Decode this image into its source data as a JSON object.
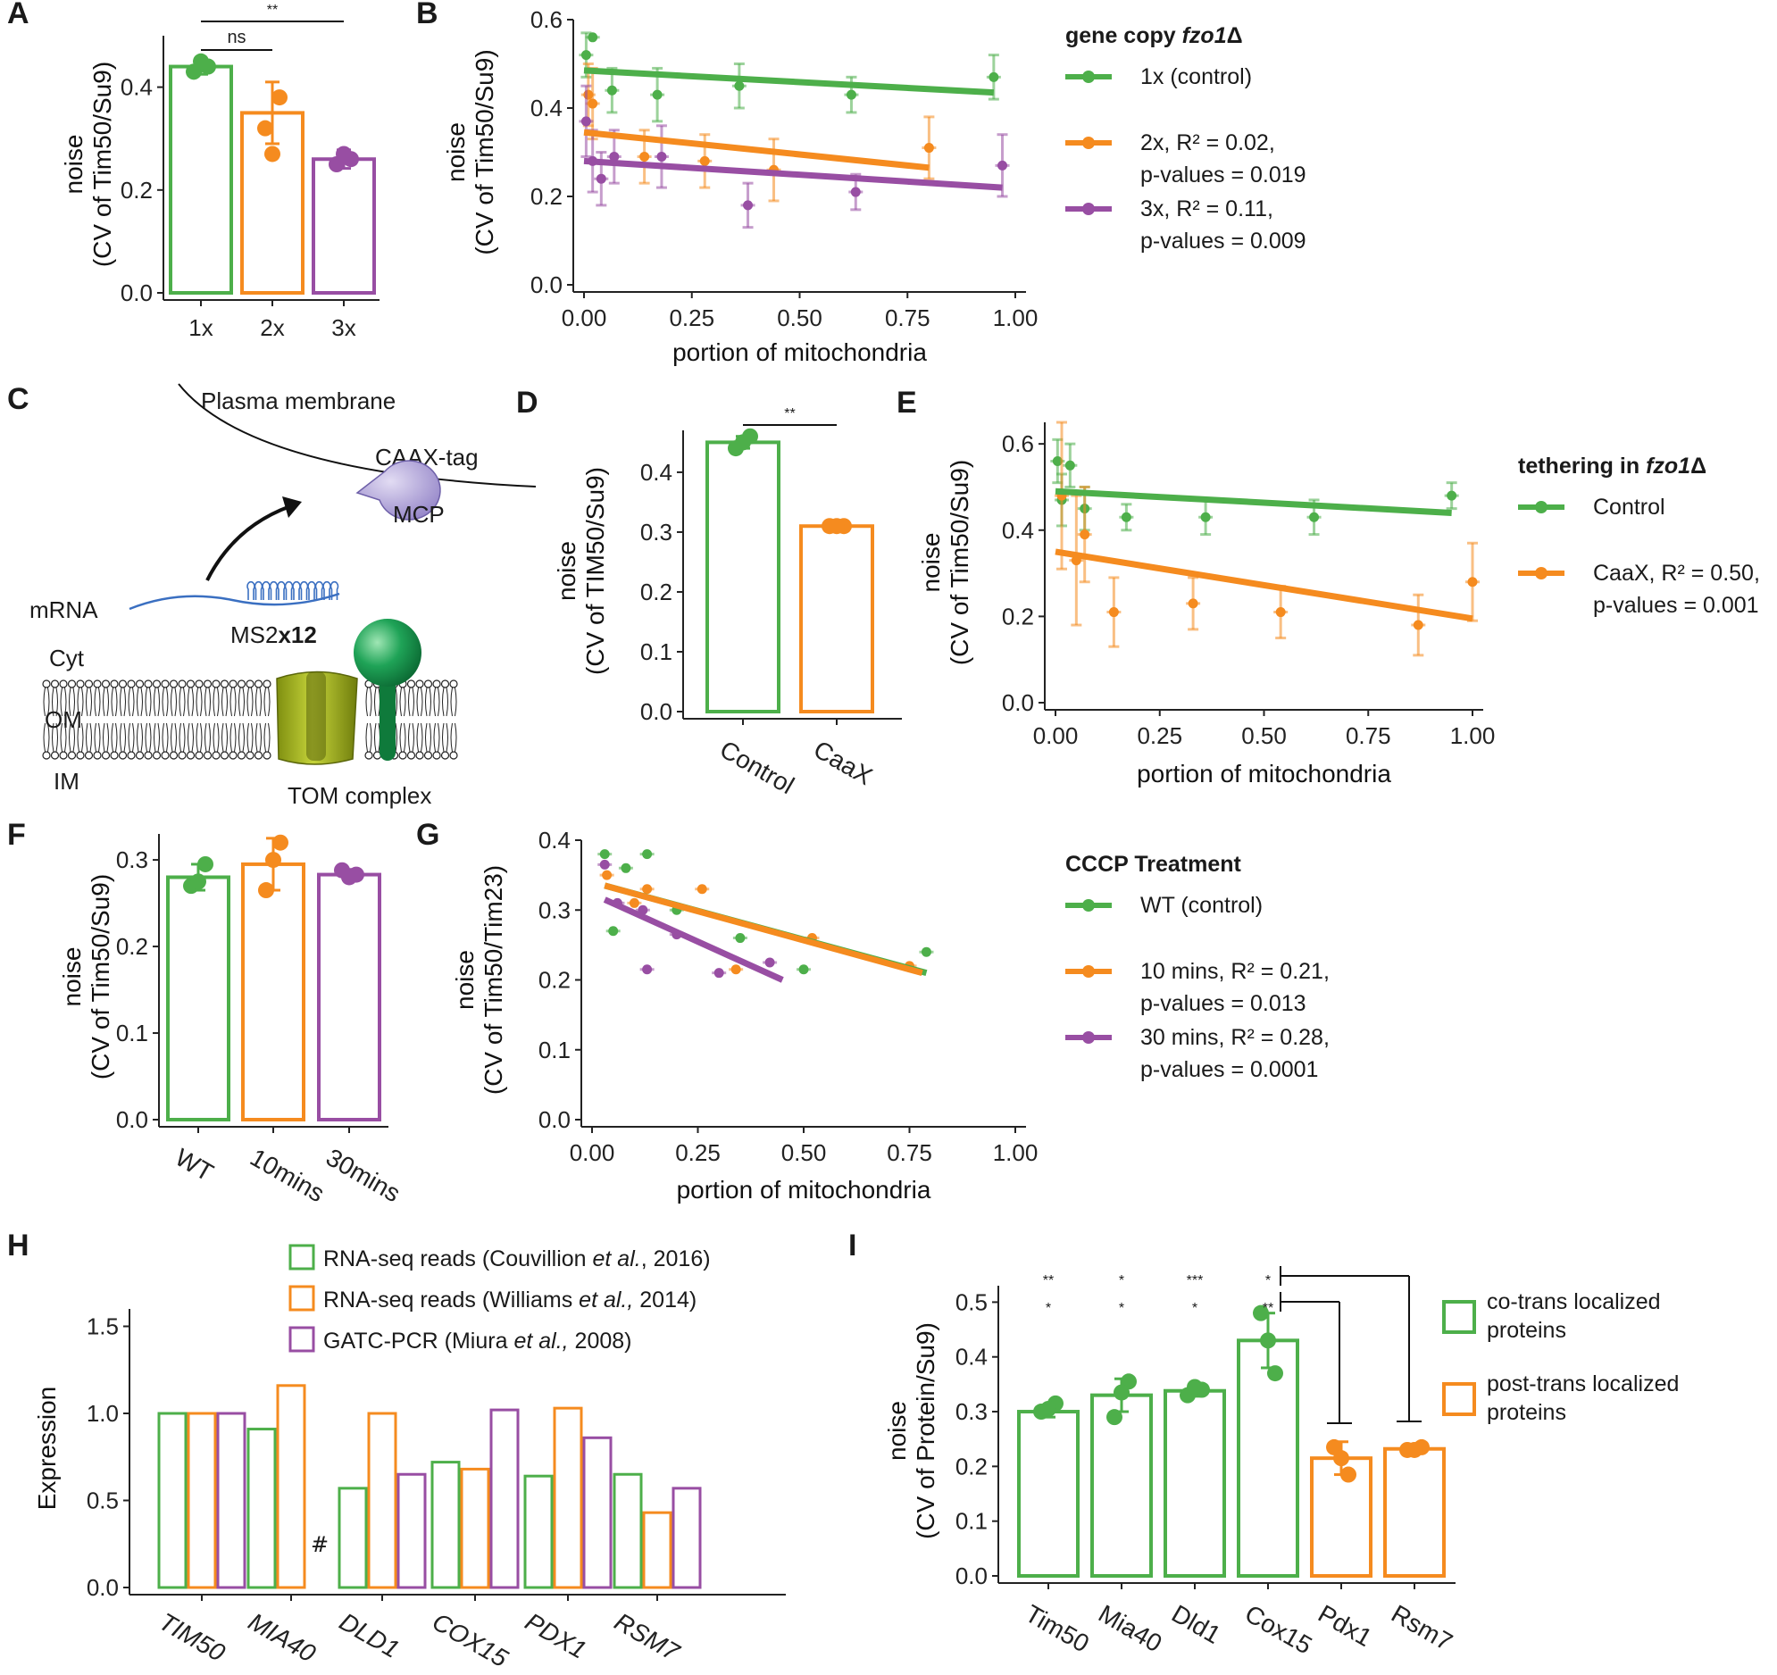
{
  "colors": {
    "green": "#4daf4a",
    "orange": "#f58b1f",
    "purple": "#984ea3",
    "axis": "#222222"
  },
  "panels": {
    "A": {
      "letter": "A",
      "type": "bar",
      "ylabel": [
        "noise",
        "(CV of Tim50/Su9)"
      ],
      "categories": [
        "1x",
        "2x",
        "3x"
      ],
      "values": [
        0.44,
        0.35,
        0.26
      ],
      "errors": [
        0.015,
        0.06,
        0.018
      ],
      "points": [
        [
          0.43,
          0.44,
          0.45
        ],
        [
          0.32,
          0.38,
          0.27
        ],
        [
          0.25,
          0.26,
          0.27
        ]
      ],
      "ylim": [
        0,
        0.5
      ],
      "yticks": [
        0.0,
        0.2,
        0.4
      ],
      "bar_colors": [
        "green",
        "orange",
        "purple"
      ],
      "significance": [
        {
          "from": 0,
          "to": 1,
          "label": "ns"
        },
        {
          "from": 0,
          "to": 2,
          "label": "**"
        }
      ]
    },
    "B": {
      "letter": "B",
      "type": "scatter",
      "xlabel": "portion of mitochondria",
      "ylabel": [
        "noise",
        "(CV of Tim50/Su9)"
      ],
      "xlim": [
        0,
        1
      ],
      "ylim": [
        0,
        0.6
      ],
      "xticks": [
        0.0,
        0.25,
        0.5,
        0.75,
        1.0
      ],
      "yticks": [
        0.0,
        0.2,
        0.4,
        0.6
      ],
      "legend_title": "gene copy ",
      "legend_title_italic": "fzo1",
      "legend_title_suffix": "Δ",
      "series": [
        {
          "name": "1x (control)",
          "lines": [
            "1x (control)"
          ],
          "color": "green",
          "points": [
            [
              0.005,
              0.52,
              0.05
            ],
            [
              0.02,
              0.56,
              0.0
            ],
            [
              0.065,
              0.44,
              0.05
            ],
            [
              0.17,
              0.43,
              0.06
            ],
            [
              0.36,
              0.45,
              0.05
            ],
            [
              0.62,
              0.43,
              0.04
            ],
            [
              0.95,
              0.47,
              0.05
            ]
          ],
          "fit": [
            [
              0.0,
              0.485
            ],
            [
              0.95,
              0.435
            ]
          ]
        },
        {
          "name": "2x",
          "lines": [
            "2x, R² = 0.02,",
            "p-values = 0.019"
          ],
          "color": "orange",
          "points": [
            [
              0.01,
              0.43,
              0.07
            ],
            [
              0.02,
              0.41,
              0.08
            ],
            [
              0.14,
              0.29,
              0.06
            ],
            [
              0.28,
              0.28,
              0.06
            ],
            [
              0.44,
              0.26,
              0.07
            ],
            [
              0.8,
              0.31,
              0.07
            ]
          ],
          "fit": [
            [
              0.0,
              0.345
            ],
            [
              0.8,
              0.265
            ]
          ]
        },
        {
          "name": "3x",
          "lines": [
            "3x, R² = 0.11,",
            "p-values = 0.009"
          ],
          "color": "purple",
          "points": [
            [
              0.005,
              0.37,
              0.08
            ],
            [
              0.02,
              0.28,
              0.07
            ],
            [
              0.04,
              0.24,
              0.06
            ],
            [
              0.07,
              0.29,
              0.06
            ],
            [
              0.18,
              0.29,
              0.07
            ],
            [
              0.38,
              0.18,
              0.05
            ],
            [
              0.63,
              0.21,
              0.04
            ],
            [
              0.97,
              0.27,
              0.07
            ]
          ],
          "fit": [
            [
              0.0,
              0.28
            ],
            [
              0.97,
              0.22
            ]
          ]
        }
      ]
    },
    "C": {
      "letter": "C",
      "labels": {
        "plasma": "Plasma membrane",
        "caax": "CAAX-tag",
        "mcp": "MCP",
        "mrna": "mRNA",
        "ms2": "MS2",
        "ms2_bold": "x12",
        "cyt": "Cyt",
        "om": "OM",
        "im": "IM",
        "tom": "TOM complex"
      }
    },
    "D": {
      "letter": "D",
      "type": "bar",
      "ylabel": [
        "noise",
        "(CV of TIM50/Su9)"
      ],
      "categories": [
        "Control",
        "CaaX"
      ],
      "values": [
        0.45,
        0.31
      ],
      "errors": [
        0.01,
        0.003
      ],
      "points": [
        [
          0.44,
          0.46,
          0.45
        ],
        [
          0.31,
          0.31,
          0.31
        ]
      ],
      "ylim": [
        0,
        0.47
      ],
      "yticks": [
        0.0,
        0.1,
        0.2,
        0.3,
        0.4
      ],
      "bar_colors": [
        "green",
        "orange"
      ],
      "significance": [
        {
          "from": 0,
          "to": 1,
          "label": "**"
        }
      ]
    },
    "E": {
      "letter": "E",
      "type": "scatter",
      "xlabel": "portion of mitochondria",
      "ylabel": [
        "noise",
        "(CV of Tim50/Su9)"
      ],
      "xlim": [
        0,
        1
      ],
      "ylim": [
        0,
        0.65
      ],
      "xticks": [
        0.0,
        0.25,
        0.5,
        0.75,
        1.0
      ],
      "yticks": [
        0.0,
        0.2,
        0.4,
        0.6
      ],
      "legend_title": "tethering in ",
      "legend_title_italic": "fzo1",
      "legend_title_suffix": "Δ",
      "series": [
        {
          "name": "Control",
          "lines": [
            "Control"
          ],
          "color": "green",
          "points": [
            [
              0.005,
              0.56,
              0.05
            ],
            [
              0.015,
              0.47,
              0.06
            ],
            [
              0.035,
              0.55,
              0.05
            ],
            [
              0.07,
              0.45,
              0.05
            ],
            [
              0.17,
              0.43,
              0.03
            ],
            [
              0.36,
              0.43,
              0.04
            ],
            [
              0.62,
              0.43,
              0.04
            ],
            [
              0.95,
              0.48,
              0.03
            ]
          ],
          "fit": [
            [
              0.0,
              0.49
            ],
            [
              0.95,
              0.44
            ]
          ]
        },
        {
          "name": "CaaX",
          "lines": [
            "CaaX, R² = 0.50,",
            "p-values = 0.001"
          ],
          "color": "orange",
          "points": [
            [
              0.015,
              0.48,
              0.17
            ],
            [
              0.05,
              0.33,
              0.15
            ],
            [
              0.07,
              0.39,
              0.11
            ],
            [
              0.14,
              0.21,
              0.08
            ],
            [
              0.33,
              0.23,
              0.06
            ],
            [
              0.54,
              0.21,
              0.06
            ],
            [
              0.87,
              0.18,
              0.07
            ],
            [
              1.0,
              0.28,
              0.09
            ]
          ],
          "fit": [
            [
              0.0,
              0.35
            ],
            [
              1.0,
              0.195
            ]
          ]
        }
      ]
    },
    "F": {
      "letter": "F",
      "type": "bar",
      "ylabel": [
        "noise",
        "(CV of Tim50/Su9)"
      ],
      "categories": [
        "WT",
        "10mins",
        "30mins"
      ],
      "values": [
        0.28,
        0.295,
        0.283
      ],
      "errors": [
        0.015,
        0.03,
        0.006
      ],
      "points": [
        [
          0.27,
          0.295,
          0.275
        ],
        [
          0.265,
          0.32,
          0.3
        ],
        [
          0.288,
          0.283,
          0.28
        ]
      ],
      "ylim": [
        0,
        0.33
      ],
      "yticks": [
        0.0,
        0.1,
        0.2,
        0.3
      ],
      "bar_colors": [
        "green",
        "orange",
        "purple"
      ],
      "significance": []
    },
    "G": {
      "letter": "G",
      "type": "scatter",
      "xlabel": "portion of mitochondria",
      "ylabel": [
        "noise",
        "(CV of Tim50/Tim23)"
      ],
      "xlim": [
        0,
        1
      ],
      "ylim": [
        0,
        0.4
      ],
      "xticks": [
        0.0,
        0.25,
        0.5,
        0.75,
        1.0
      ],
      "yticks": [
        0.0,
        0.1,
        0.2,
        0.3,
        0.4
      ],
      "legend_title": "CCCP Treatment",
      "legend_title_italic": "",
      "legend_title_suffix": "",
      "series": [
        {
          "name": "WT (control)",
          "lines": [
            "WT (control)"
          ],
          "color": "green",
          "points": [
            [
              0.03,
              0.38,
              0.0
            ],
            [
              0.05,
              0.27,
              0.0
            ],
            [
              0.08,
              0.36,
              0.0
            ],
            [
              0.13,
              0.38,
              0.0
            ],
            [
              0.2,
              0.3,
              0.0
            ],
            [
              0.35,
              0.26,
              0.0
            ],
            [
              0.5,
              0.215,
              0.0
            ],
            [
              0.79,
              0.24,
              0.0
            ]
          ],
          "fit": [
            [
              0.03,
              0.335
            ],
            [
              0.79,
              0.21
            ]
          ]
        },
        {
          "name": "10 mins",
          "lines": [
            "10 mins, R² = 0.21,",
            "p-values = 0.013"
          ],
          "color": "orange",
          "points": [
            [
              0.035,
              0.35,
              0.0
            ],
            [
              0.1,
              0.31,
              0.0
            ],
            [
              0.13,
              0.33,
              0.0
            ],
            [
              0.26,
              0.33,
              0.0
            ],
            [
              0.34,
              0.215,
              0.0
            ],
            [
              0.52,
              0.26,
              0.0
            ],
            [
              0.75,
              0.22,
              0.0
            ]
          ],
          "fit": [
            [
              0.03,
              0.335
            ],
            [
              0.78,
              0.21
            ]
          ]
        },
        {
          "name": "30 mins",
          "lines": [
            "30 mins, R² = 0.28,",
            "p-values = 0.0001"
          ],
          "color": "purple",
          "points": [
            [
              0.03,
              0.365,
              0.0
            ],
            [
              0.06,
              0.31,
              0.0
            ],
            [
              0.12,
              0.3,
              0.0
            ],
            [
              0.13,
              0.215,
              0.0
            ],
            [
              0.2,
              0.265,
              0.0
            ],
            [
              0.3,
              0.21,
              0.0
            ],
            [
              0.42,
              0.225,
              0.0
            ]
          ],
          "fit": [
            [
              0.03,
              0.315
            ],
            [
              0.45,
              0.2
            ]
          ]
        }
      ]
    },
    "H": {
      "letter": "H",
      "type": "grouped-bar",
      "ylabel": "Expression",
      "categories": [
        "TIM50",
        "MIA40",
        "DLD1",
        "COX15",
        "PDX1",
        "RSM7"
      ],
      "ylim": [
        0,
        1.6
      ],
      "yticks": [
        0.0,
        0.5,
        1.0,
        1.5
      ],
      "series": [
        {
          "name": "Couvillion",
          "color": "green",
          "legend": [
            "RNA-seq reads (Couvillion ",
            "et al.",
            ", 2016)"
          ],
          "values": [
            1.0,
            0.91,
            0.57,
            0.72,
            0.64,
            0.65
          ]
        },
        {
          "name": "Williams",
          "color": "orange",
          "legend": [
            "RNA-seq reads (Williams ",
            "et al.,",
            " 2014)"
          ],
          "values": [
            1.0,
            1.16,
            1.0,
            0.68,
            1.03,
            0.43
          ]
        },
        {
          "name": "Miura",
          "color": "purple",
          "legend": [
            "GATC-PCR (Miura ",
            "et al.,",
            " 2008)"
          ],
          "values": [
            1.0,
            null,
            0.65,
            1.02,
            0.86,
            0.57
          ]
        }
      ],
      "missing_marker": "#"
    },
    "I": {
      "letter": "I",
      "type": "bar",
      "ylabel": [
        "noise",
        "(CV of Protein/Su9)"
      ],
      "categories": [
        "Tim50",
        "Mia40",
        "Dld1",
        "Cox15",
        "Pdx1",
        "Rsm7"
      ],
      "values": [
        0.3,
        0.33,
        0.338,
        0.43,
        0.215,
        0.232
      ],
      "errors": [
        0.01,
        0.03,
        0.01,
        0.05,
        0.03,
        0.005
      ],
      "points": [
        [
          0.3,
          0.315,
          0.305
        ],
        [
          0.29,
          0.355,
          0.335
        ],
        [
          0.33,
          0.34,
          0.345
        ],
        [
          0.48,
          0.37,
          0.43
        ],
        [
          0.235,
          0.185,
          0.215
        ],
        [
          0.23,
          0.235,
          0.23
        ]
      ],
      "ylim": [
        0,
        0.53
      ],
      "yticks": [
        0.0,
        0.1,
        0.2,
        0.3,
        0.4,
        0.5
      ],
      "bar_colors": [
        "green",
        "green",
        "green",
        "green",
        "orange",
        "orange"
      ],
      "sig_top": [
        "**",
        "*",
        "***",
        "*"
      ],
      "sig_bottom": [
        "*",
        "*",
        "*",
        "**"
      ],
      "legend": [
        {
          "color": "green",
          "lines": [
            "co-trans localized",
            "proteins"
          ]
        },
        {
          "color": "orange",
          "lines": [
            "post-trans localized",
            "proteins"
          ]
        }
      ]
    }
  },
  "chart_data": [
    {
      "panel": "A",
      "type": "bar",
      "categories": [
        "1x",
        "2x",
        "3x"
      ],
      "values": [
        0.44,
        0.35,
        0.26
      ],
      "ylabel": "noise (CV of Tim50/Su9)",
      "ylim": [
        0,
        0.5
      ]
    },
    {
      "panel": "B",
      "type": "scatter",
      "xlabel": "portion of mitochondria",
      "ylabel": "noise (CV of Tim50/Su9)",
      "xlim": [
        0,
        1
      ],
      "ylim": [
        0,
        0.6
      ],
      "series": [
        "1x (control)",
        "2x",
        "3x"
      ]
    },
    {
      "panel": "D",
      "type": "bar",
      "categories": [
        "Control",
        "CaaX"
      ],
      "values": [
        0.45,
        0.31
      ],
      "ylabel": "noise (CV of TIM50/Su9)"
    },
    {
      "panel": "E",
      "type": "scatter",
      "xlabel": "portion of mitochondria",
      "ylabel": "noise (CV of Tim50/Su9)",
      "series": [
        "Control",
        "CaaX"
      ]
    },
    {
      "panel": "F",
      "type": "bar",
      "categories": [
        "WT",
        "10mins",
        "30mins"
      ],
      "values": [
        0.28,
        0.295,
        0.283
      ],
      "ylabel": "noise (CV of Tim50/Su9)"
    },
    {
      "panel": "G",
      "type": "scatter",
      "xlabel": "portion of mitochondria",
      "ylabel": "noise (CV of Tim50/Tim23)",
      "series": [
        "WT (control)",
        "10 mins",
        "30 mins"
      ]
    },
    {
      "panel": "H",
      "type": "bar",
      "categories": [
        "TIM50",
        "MIA40",
        "DLD1",
        "COX15",
        "PDX1",
        "RSM7"
      ],
      "series": [
        "Couvillion",
        "Williams",
        "Miura"
      ],
      "ylabel": "Expression",
      "ylim": [
        0,
        1.6
      ]
    },
    {
      "panel": "I",
      "type": "bar",
      "categories": [
        "Tim50",
        "Mia40",
        "Dld1",
        "Cox15",
        "Pdx1",
        "Rsm7"
      ],
      "values": [
        0.3,
        0.33,
        0.338,
        0.43,
        0.215,
        0.232
      ],
      "ylabel": "noise (CV of Protein/Su9)"
    }
  ]
}
